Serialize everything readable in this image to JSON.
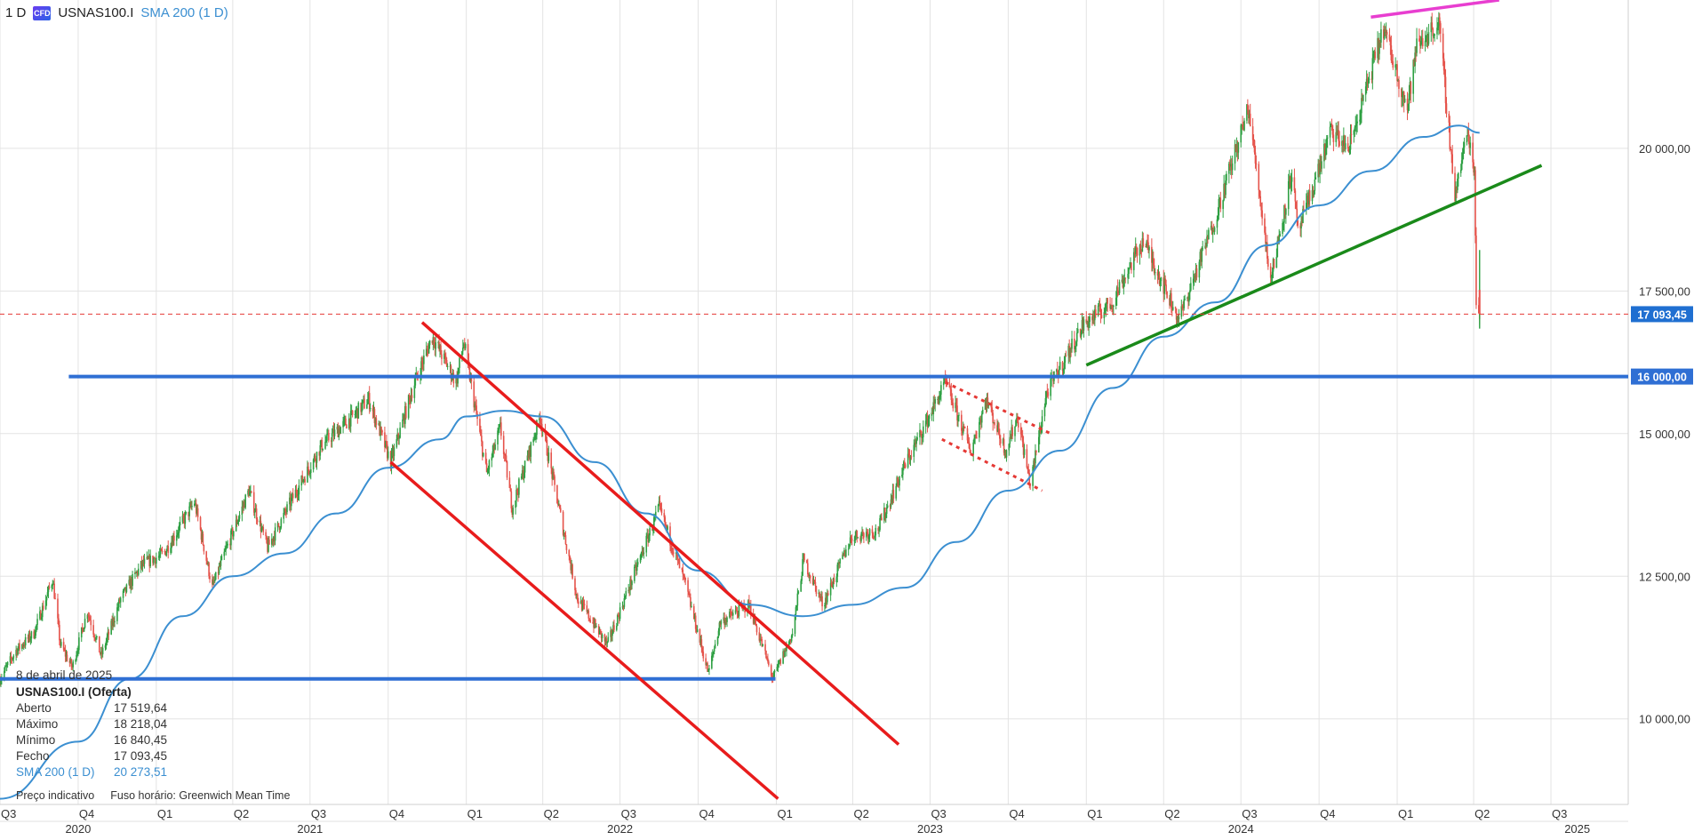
{
  "header": {
    "timeframe": "1 D",
    "cfd_badge": "CFD",
    "symbol": "USNAS100.I",
    "indicator": "SMA 200 (1 D)"
  },
  "info_panel": {
    "date": "8 de abril de 2025",
    "instrument": "USNAS100.I (Oferta)",
    "rows": [
      {
        "label": "Aberto",
        "value": "17 519,64"
      },
      {
        "label": "Máximo",
        "value": "18 218,04"
      },
      {
        "label": "Mínimo",
        "value": "16 840,45"
      },
      {
        "label": "Fecho",
        "value": "17 093,45"
      }
    ],
    "sma": {
      "label": "SMA 200 (1 D)",
      "value": "20 273,51"
    },
    "footer_left": "Preço indicativo",
    "footer_right": "Fuso horário: Greenwich Mean Time"
  },
  "chart_data": {
    "type": "line",
    "title": "",
    "xlabel": "",
    "ylabel": "",
    "x_range": [
      "2020-07-01",
      "2025-09-30"
    ],
    "ylim": [
      8500,
      22600
    ],
    "y_ticks": [
      {
        "value": 10000,
        "label": "10 000,00"
      },
      {
        "value": 12500,
        "label": "12 500,00"
      },
      {
        "value": 15000,
        "label": "15 000,00"
      },
      {
        "value": 17500,
        "label": "17 500,00"
      },
      {
        "value": 20000,
        "label": "20 000,00"
      }
    ],
    "x_quarters": [
      {
        "date": "2020-07-01",
        "label": "Q3"
      },
      {
        "date": "2020-10-01",
        "label": "Q4"
      },
      {
        "date": "2021-01-01",
        "label": "Q1"
      },
      {
        "date": "2021-04-01",
        "label": "Q2"
      },
      {
        "date": "2021-07-01",
        "label": "Q3"
      },
      {
        "date": "2021-10-01",
        "label": "Q4"
      },
      {
        "date": "2022-01-01",
        "label": "Q1"
      },
      {
        "date": "2022-04-01",
        "label": "Q2"
      },
      {
        "date": "2022-07-01",
        "label": "Q3"
      },
      {
        "date": "2022-10-01",
        "label": "Q4"
      },
      {
        "date": "2023-01-01",
        "label": "Q1"
      },
      {
        "date": "2023-04-01",
        "label": "Q2"
      },
      {
        "date": "2023-07-01",
        "label": "Q3"
      },
      {
        "date": "2023-10-01",
        "label": "Q4"
      },
      {
        "date": "2024-01-01",
        "label": "Q1"
      },
      {
        "date": "2024-04-01",
        "label": "Q2"
      },
      {
        "date": "2024-07-01",
        "label": "Q3"
      },
      {
        "date": "2024-10-01",
        "label": "Q4"
      },
      {
        "date": "2025-01-01",
        "label": "Q1"
      },
      {
        "date": "2025-04-01",
        "label": "Q2"
      },
      {
        "date": "2025-07-01",
        "label": "Q3"
      }
    ],
    "x_years": [
      {
        "date": "2020-10-01",
        "label": "2020"
      },
      {
        "date": "2021-07-01",
        "label": "2021"
      },
      {
        "date": "2022-07-01",
        "label": "2022"
      },
      {
        "date": "2023-07-01",
        "label": "2023"
      },
      {
        "date": "2024-07-01",
        "label": "2024"
      },
      {
        "date": "2025-08-01",
        "label": "2025"
      }
    ],
    "price_path": [
      [
        "2020-07-01",
        10700
      ],
      [
        "2020-07-20",
        11200
      ],
      [
        "2020-08-10",
        11500
      ],
      [
        "2020-09-01",
        12450
      ],
      [
        "2020-09-10",
        11300
      ],
      [
        "2020-09-24",
        10900
      ],
      [
        "2020-10-12",
        11900
      ],
      [
        "2020-10-28",
        11100
      ],
      [
        "2020-11-20",
        12100
      ],
      [
        "2020-12-15",
        12700
      ],
      [
        "2021-01-10",
        12900
      ],
      [
        "2021-02-15",
        13800
      ],
      [
        "2021-03-08",
        12300
      ],
      [
        "2021-03-25",
        13000
      ],
      [
        "2021-04-20",
        14000
      ],
      [
        "2021-05-12",
        13000
      ],
      [
        "2021-06-15",
        14000
      ],
      [
        "2021-07-15",
        14800
      ],
      [
        "2021-08-20",
        15300
      ],
      [
        "2021-09-08",
        15600
      ],
      [
        "2021-10-04",
        14500
      ],
      [
        "2021-10-30",
        15800
      ],
      [
        "2021-11-22",
        16700
      ],
      [
        "2021-12-20",
        15900
      ],
      [
        "2021-12-29",
        16600
      ],
      [
        "2022-01-25",
        14300
      ],
      [
        "2022-02-10",
        15100
      ],
      [
        "2022-02-24",
        13700
      ],
      [
        "2022-03-29",
        15300
      ],
      [
        "2022-05-12",
        12100
      ],
      [
        "2022-06-16",
        11300
      ],
      [
        "2022-08-16",
        13700
      ],
      [
        "2022-09-15",
        12400
      ],
      [
        "2022-10-13",
        10800
      ],
      [
        "2022-10-27",
        11700
      ],
      [
        "2022-11-30",
        12000
      ],
      [
        "2022-12-28",
        10700
      ],
      [
        "2023-01-20",
        11500
      ],
      [
        "2023-02-02",
        12800
      ],
      [
        "2023-02-25",
        12000
      ],
      [
        "2023-03-31",
        13200
      ],
      [
        "2023-04-30",
        13300
      ],
      [
        "2023-05-31",
        14400
      ],
      [
        "2023-06-30",
        15300
      ],
      [
        "2023-07-19",
        15900
      ],
      [
        "2023-08-18",
        14700
      ],
      [
        "2023-09-05",
        15600
      ],
      [
        "2023-09-28",
        14700
      ],
      [
        "2023-10-12",
        15300
      ],
      [
        "2023-10-27",
        14100
      ],
      [
        "2023-11-15",
        15700
      ],
      [
        "2023-12-28",
        16900
      ],
      [
        "2024-01-31",
        17300
      ],
      [
        "2024-03-08",
        18400
      ],
      [
        "2024-04-19",
        17000
      ],
      [
        "2024-05-30",
        18700
      ],
      [
        "2024-07-10",
        20700
      ],
      [
        "2024-08-05",
        17700
      ],
      [
        "2024-08-30",
        19600
      ],
      [
        "2024-09-06",
        18500
      ],
      [
        "2024-10-15",
        20300
      ],
      [
        "2024-11-05",
        20000
      ],
      [
        "2024-12-16",
        22100
      ],
      [
        "2025-01-13",
        20700
      ],
      [
        "2025-01-24",
        21800
      ],
      [
        "2025-02-19",
        22200
      ],
      [
        "2025-03-10",
        19200
      ],
      [
        "2025-03-25",
        20300
      ],
      [
        "2025-04-02",
        19600
      ],
      [
        "2025-04-04",
        17400
      ],
      [
        "2025-04-08",
        17093.45
      ]
    ],
    "sma200": [
      [
        "2020-07-01",
        8600
      ],
      [
        "2020-10-01",
        9600
      ],
      [
        "2020-12-01",
        10700
      ],
      [
        "2021-02-01",
        11800
      ],
      [
        "2021-04-01",
        12500
      ],
      [
        "2021-06-01",
        12900
      ],
      [
        "2021-08-01",
        13600
      ],
      [
        "2021-10-01",
        14400
      ],
      [
        "2021-12-01",
        14900
      ],
      [
        "2022-01-01",
        15300
      ],
      [
        "2022-02-15",
        15400
      ],
      [
        "2022-04-01",
        15300
      ],
      [
        "2022-06-01",
        14500
      ],
      [
        "2022-08-01",
        13600
      ],
      [
        "2022-10-01",
        12600
      ],
      [
        "2022-12-01",
        12000
      ],
      [
        "2023-02-01",
        11800
      ],
      [
        "2023-04-01",
        12000
      ],
      [
        "2023-06-01",
        12300
      ],
      [
        "2023-08-01",
        13100
      ],
      [
        "2023-10-01",
        14000
      ],
      [
        "2023-12-01",
        14700
      ],
      [
        "2024-02-01",
        15800
      ],
      [
        "2024-04-01",
        16700
      ],
      [
        "2024-06-01",
        17300
      ],
      [
        "2024-08-01",
        18300
      ],
      [
        "2024-10-01",
        19000
      ],
      [
        "2024-12-01",
        19600
      ],
      [
        "2025-02-01",
        20200
      ],
      [
        "2025-03-15",
        20400
      ],
      [
        "2025-04-08",
        20273.51
      ]
    ],
    "markers": [
      {
        "value": 17093.45,
        "label": "17 093,45",
        "style": "dashed",
        "color": "#e53935"
      },
      {
        "value": 16000,
        "label": "16 000,00",
        "style": "solid",
        "color": "#2f6fd4"
      }
    ],
    "drawings": [
      {
        "kind": "hline",
        "color": "#2f6fd4",
        "from": "2020-07-01",
        "to": "2022-12-31",
        "value": 10700
      },
      {
        "kind": "hline",
        "color": "#2f6fd4",
        "from": "2020-09-20",
        "to": "2025-09-30",
        "value": 16000
      },
      {
        "kind": "segment",
        "color": "#e81c1c",
        "dash": false,
        "p1": [
          "2021-11-10",
          16950
        ],
        "p2": [
          "2023-05-25",
          9550
        ]
      },
      {
        "kind": "segment",
        "color": "#e81c1c",
        "dash": false,
        "p1": [
          "2021-10-04",
          14500
        ],
        "p2": [
          "2023-01-03",
          8600
        ]
      },
      {
        "kind": "segment",
        "color": "#e53935",
        "dash": true,
        "p1": [
          "2023-07-19",
          15900
        ],
        "p2": [
          "2023-11-20",
          15000
        ]
      },
      {
        "kind": "segment",
        "color": "#e53935",
        "dash": true,
        "p1": [
          "2023-07-15",
          14900
        ],
        "p2": [
          "2023-11-10",
          14000
        ]
      },
      {
        "kind": "segment",
        "color": "#1a8a1a",
        "dash": false,
        "p1": [
          "2024-01-01",
          16200
        ],
        "p2": [
          "2025-06-20",
          19700
        ]
      },
      {
        "kind": "segment",
        "color": "#e83ed0",
        "dash": false,
        "p1": [
          "2024-12-01",
          22300
        ],
        "p2": [
          "2025-05-01",
          22600
        ]
      }
    ],
    "colors": {
      "up": "#2ea043",
      "down": "#e5534b",
      "sma": "#3b8fd1",
      "grid": "#e3e3e3"
    },
    "grid": true
  }
}
